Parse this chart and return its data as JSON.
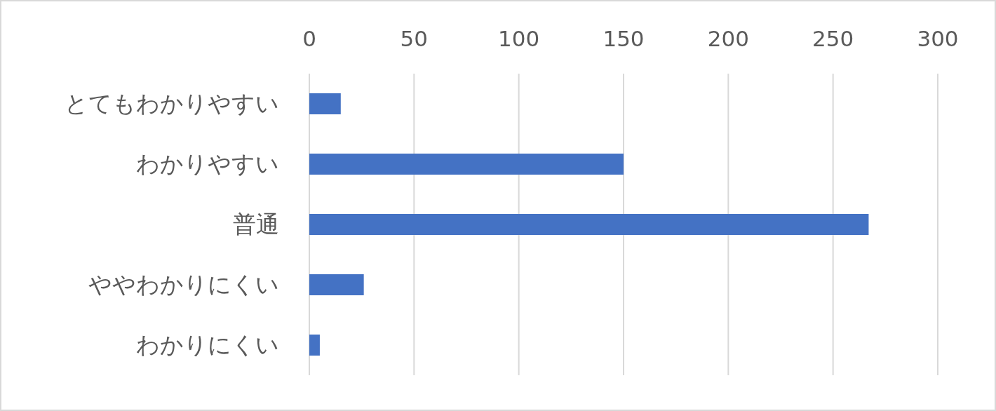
{
  "chart_data": {
    "type": "bar",
    "orientation": "horizontal",
    "categories": [
      "とてもわかりやすい",
      "わかりやすい",
      "普通",
      "ややわかりにくい",
      "わかりにくい"
    ],
    "values": [
      15,
      150,
      267,
      26,
      5
    ],
    "color": "#4472c4",
    "xlim": [
      0,
      300
    ],
    "xticks": [
      0,
      50,
      100,
      150,
      200,
      250,
      300
    ],
    "grid": "x"
  }
}
